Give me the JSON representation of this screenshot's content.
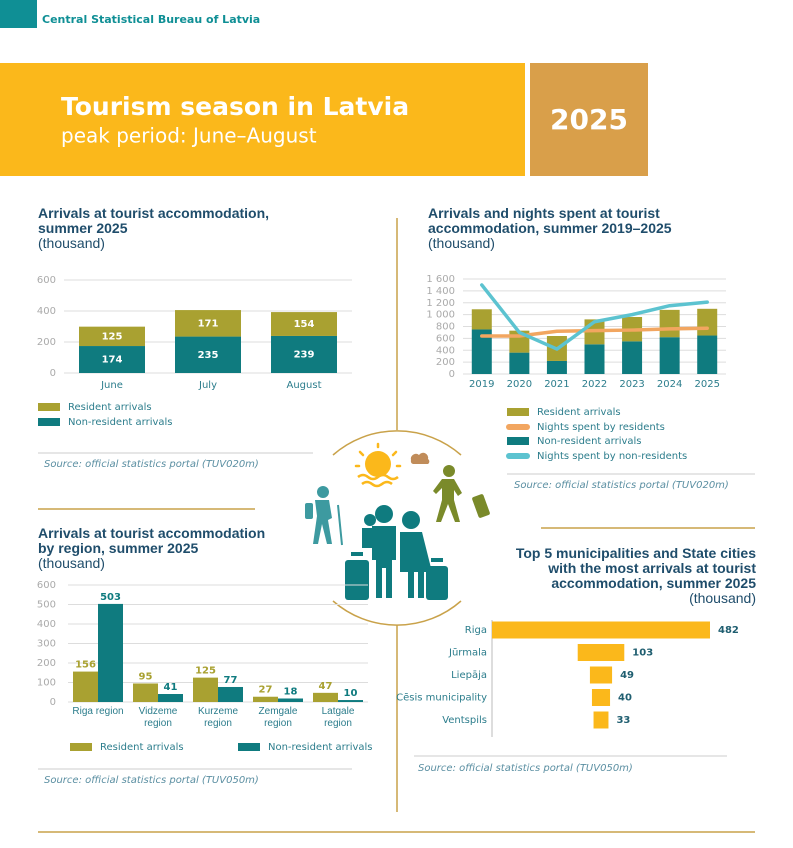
{
  "header": {
    "organization": "Central Statistical Bureau of Latvia",
    "title": "Tourism season in Latvia",
    "subtitle": "peak period: June–August",
    "year": "2025"
  },
  "chart_data": [
    {
      "type": "bar",
      "stacked": true,
      "title": "Arrivals at tourist accommodation, summer 2025",
      "unit": "(thousand)",
      "categories": [
        "June",
        "July",
        "August"
      ],
      "series": [
        {
          "name": "Resident arrivals",
          "color": "#a9a131",
          "values": [
            125,
            171,
            154
          ]
        },
        {
          "name": "Non-resident arrivals",
          "color": "#0f7b7f",
          "values": [
            174,
            235,
            239
          ]
        }
      ],
      "ylim": [
        0,
        600
      ],
      "yticks": [
        0,
        200,
        400,
        600
      ],
      "grid": true,
      "source": "Source: official statistics portal (TUV020m)"
    },
    {
      "type": "combo",
      "title": "Arrivals and nights spent at tourist accommodation, summer 2019–2025",
      "unit": "(thousand)",
      "categories": [
        "2019",
        "2020",
        "2021",
        "2022",
        "2023",
        "2024",
        "2025"
      ],
      "series": [
        {
          "name": "Resident arrivals",
          "type": "bar",
          "color": "#a9a131",
          "values": [
            340,
            370,
            420,
            420,
            410,
            460,
            450
          ]
        },
        {
          "name": "Nights spent by residents",
          "type": "line",
          "color": "#f2a660",
          "values": [
            640,
            640,
            720,
            730,
            740,
            760,
            770
          ]
        },
        {
          "name": "Non-resident arrivals",
          "type": "bar",
          "color": "#0f7b7f",
          "values": [
            750,
            360,
            220,
            500,
            550,
            620,
            648
          ]
        },
        {
          "name": "Nights spent by non-residents",
          "type": "line",
          "color": "#5cc3d0",
          "values": [
            1500,
            700,
            420,
            880,
            1000,
            1150,
            1210
          ]
        }
      ],
      "ylim": [
        0,
        1600
      ],
      "yticks": [
        0,
        200,
        400,
        600,
        800,
        {
          "value": 1000,
          "label": "1 000"
        },
        {
          "value": 1200,
          "label": "1 200"
        },
        {
          "value": 1400,
          "label": "1 400"
        },
        {
          "value": 1600,
          "label": "1 600"
        }
      ],
      "grid": true,
      "source": "Source: official statistics portal (TUV020m)"
    },
    {
      "type": "bar",
      "stacked": false,
      "title": "Arrivals at tourist accommodation by region, summer 2025",
      "unit": "(thousand)",
      "categories": [
        "Riga region",
        "Vidzeme region",
        "Kurzeme region",
        "Zemgale region",
        "Latgale region"
      ],
      "series": [
        {
          "name": "Resident arrivals",
          "color": "#a9a131",
          "values": [
            156,
            95,
            125,
            27,
            47
          ]
        },
        {
          "name": "Non-resident arrivals",
          "color": "#0f7b7f",
          "values": [
            503,
            41,
            77,
            18,
            10
          ]
        }
      ],
      "ylim": [
        0,
        600
      ],
      "yticks": [
        0,
        100,
        200,
        300,
        400,
        500,
        600
      ],
      "grid": true,
      "source": "Source: official statistics portal (TUV050m)"
    },
    {
      "type": "barh",
      "title": "Top 5 municipalities and State cities with the most arrivals at tourist accommodation, summer 2025",
      "unit": "(thousand)",
      "categories": [
        "Riga",
        "Jūrmala",
        "Liepāja",
        "Cēsis municipality",
        "Ventspils"
      ],
      "values": [
        482,
        103,
        49,
        40,
        33
      ],
      "color": "#fbb81b",
      "source": "Source: official statistics portal (TUV050m)"
    }
  ]
}
